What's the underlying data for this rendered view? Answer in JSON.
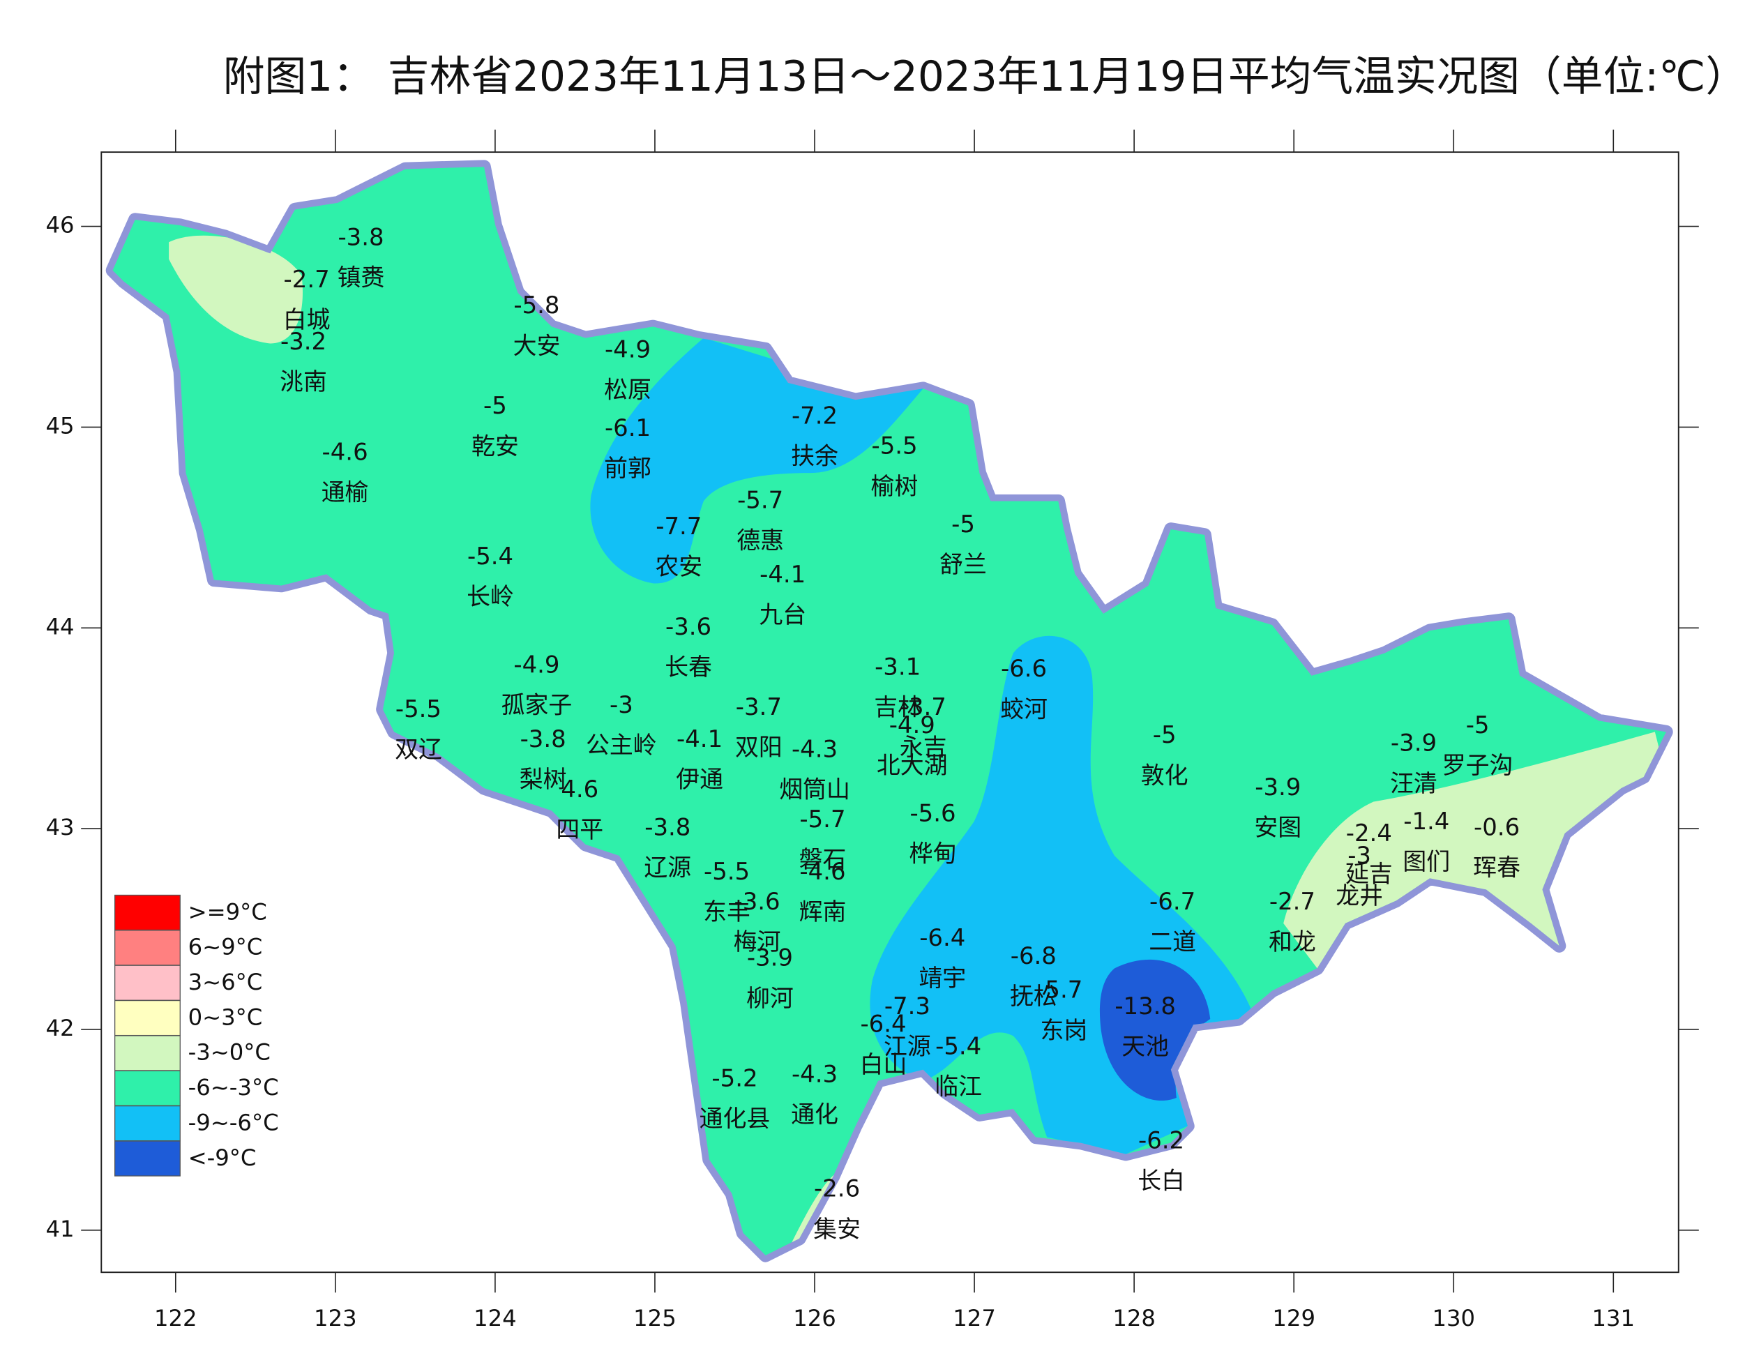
{
  "title": "附图1： 吉林省2023年11月13日～2023年11月19日平均气温实况图（单位:℃）",
  "map": {
    "xlim": [
      121.535,
      131.408
    ],
    "ylim": [
      40.79,
      46.37
    ],
    "xticks": [
      122,
      123,
      124,
      125,
      126,
      127,
      128,
      129,
      130,
      131
    ],
    "yticks": [
      41,
      42,
      43,
      44,
      45,
      46
    ]
  },
  "legend": [
    {
      "label": ">=9°C",
      "color": "#ff0000"
    },
    {
      "label": "6~9°C",
      "color": "#ff8080"
    },
    {
      "label": "3~6°C",
      "color": "#ffc0c8"
    },
    {
      "label": "0~3°C",
      "color": "#ffffc0"
    },
    {
      "label": "-3~0°C",
      "color": "#d2f7bf"
    },
    {
      "label": "-6~-3°C",
      "color": "#2ff0aa"
    },
    {
      "label": "-9~-6°C",
      "color": "#12c0f6"
    },
    {
      "label": "<-9°C",
      "color": "#1e5cd8"
    }
  ],
  "stations": [
    {
      "name": "镇赉",
      "value": -3.8,
      "lon": 123.16,
      "lat": 45.94
    },
    {
      "name": "白城",
      "value": -2.7,
      "lon": 122.82,
      "lat": 45.73
    },
    {
      "name": "洮南",
      "value": -3.2,
      "lon": 122.8,
      "lat": 45.42
    },
    {
      "name": "大安",
      "value": -5.8,
      "lon": 124.26,
      "lat": 45.6
    },
    {
      "name": "松原",
      "value": -4.9,
      "lon": 124.83,
      "lat": 45.38
    },
    {
      "name": "乾安",
      "value": -5,
      "lon": 124.0,
      "lat": 45.1
    },
    {
      "name": "前郭",
      "value": -6.1,
      "lon": 124.83,
      "lat": 44.99
    },
    {
      "name": "扶余",
      "value": -7.2,
      "lon": 126.0,
      "lat": 45.05
    },
    {
      "name": "榆树",
      "value": -5.5,
      "lon": 126.5,
      "lat": 44.9
    },
    {
      "name": "通榆",
      "value": -4.6,
      "lon": 123.06,
      "lat": 44.87
    },
    {
      "name": "德惠",
      "value": -5.7,
      "lon": 125.66,
      "lat": 44.63
    },
    {
      "name": "农安",
      "value": -7.7,
      "lon": 125.15,
      "lat": 44.5
    },
    {
      "name": "舒兰",
      "value": -5,
      "lon": 126.93,
      "lat": 44.51
    },
    {
      "name": "长岭",
      "value": -5.4,
      "lon": 123.97,
      "lat": 44.35
    },
    {
      "name": "九台",
      "value": -4.1,
      "lon": 125.8,
      "lat": 44.26
    },
    {
      "name": "长春",
      "value": -3.6,
      "lon": 125.21,
      "lat": 44.0
    },
    {
      "name": "双辽",
      "value": -5.5,
      "lon": 123.52,
      "lat": 43.59
    },
    {
      "name": "孤家子",
      "value": -4.9,
      "lon": 124.26,
      "lat": 43.81
    },
    {
      "name": "公主岭",
      "value": -3,
      "lon": 124.79,
      "lat": 43.61
    },
    {
      "name": "伊通",
      "value": -4.1,
      "lon": 125.28,
      "lat": 43.44
    },
    {
      "name": "双阳",
      "value": -3.7,
      "lon": 125.65,
      "lat": 43.6
    },
    {
      "name": "梨树",
      "value": -3.8,
      "lon": 124.3,
      "lat": 43.44
    },
    {
      "name": "四平",
      "value": 4.6,
      "lon": 124.53,
      "lat": 43.19
    },
    {
      "name": "烟筒山",
      "value": -4.3,
      "lon": 126.0,
      "lat": 43.39
    },
    {
      "name": "吉林",
      "value": -3.1,
      "lon": 126.52,
      "lat": 43.8
    },
    {
      "name": "永吉",
      "value": -3.7,
      "lon": 126.68,
      "lat": 43.6
    },
    {
      "name": "北大湖",
      "value": -4.9,
      "lon": 126.61,
      "lat": 43.51
    },
    {
      "name": "蛟河",
      "value": -6.6,
      "lon": 127.31,
      "lat": 43.79
    },
    {
      "name": "敦化",
      "value": -5,
      "lon": 128.19,
      "lat": 43.46
    },
    {
      "name": "安图",
      "value": -3.9,
      "lon": 128.9,
      "lat": 43.2
    },
    {
      "name": "汪清",
      "value": -3.9,
      "lon": 129.75,
      "lat": 43.42
    },
    {
      "name": "罗子沟",
      "value": -5,
      "lon": 130.15,
      "lat": 43.51
    },
    {
      "name": "磐石",
      "value": -5.7,
      "lon": 126.05,
      "lat": 43.04
    },
    {
      "name": "桦甸",
      "value": -5.6,
      "lon": 126.74,
      "lat": 43.07
    },
    {
      "name": "辉南",
      "value": -4.6,
      "lon": 126.05,
      "lat": 42.78
    },
    {
      "name": "辽源",
      "value": -3.8,
      "lon": 125.08,
      "lat": 43.0
    },
    {
      "name": "东丰",
      "value": -5.5,
      "lon": 125.45,
      "lat": 42.78
    },
    {
      "name": "梅河",
      "value": -3.6,
      "lon": 125.64,
      "lat": 42.63
    },
    {
      "name": "柳河",
      "value": -3.9,
      "lon": 125.72,
      "lat": 42.35
    },
    {
      "name": "延吉",
      "value": -2.4,
      "lon": 129.47,
      "lat": 42.97
    },
    {
      "name": "龙井",
      "value": -3,
      "lon": 129.41,
      "lat": 42.86
    },
    {
      "name": "图们",
      "value": -1.4,
      "lon": 129.83,
      "lat": 43.03
    },
    {
      "name": "珲春",
      "value": -0.6,
      "lon": 130.27,
      "lat": 43.0
    },
    {
      "name": "和龙",
      "value": -2.7,
      "lon": 128.99,
      "lat": 42.63
    },
    {
      "name": "二道",
      "value": -6.7,
      "lon": 128.24,
      "lat": 42.63
    },
    {
      "name": "靖宇",
      "value": -6.4,
      "lon": 126.8,
      "lat": 42.45
    },
    {
      "name": "抚松",
      "value": -6.8,
      "lon": 127.37,
      "lat": 42.36
    },
    {
      "name": "东岗",
      "value": 5.7,
      "lon": 127.56,
      "lat": 42.19
    },
    {
      "name": "天池",
      "value": -13.8,
      "lon": 128.07,
      "lat": 42.11
    },
    {
      "name": "江源",
      "value": -7.3,
      "lon": 126.58,
      "lat": 42.11
    },
    {
      "name": "白山",
      "value": -6.4,
      "lon": 126.43,
      "lat": 42.02
    },
    {
      "name": "临江",
      "value": -5.4,
      "lon": 126.9,
      "lat": 41.91
    },
    {
      "name": "通化县",
      "value": -5.2,
      "lon": 125.5,
      "lat": 41.75
    },
    {
      "name": "通化",
      "value": -4.3,
      "lon": 126.0,
      "lat": 41.77
    },
    {
      "name": "长白",
      "value": -6.2,
      "lon": 128.17,
      "lat": 41.44
    },
    {
      "name": "集安",
      "value": -2.6,
      "lon": 126.14,
      "lat": 41.2
    }
  ]
}
